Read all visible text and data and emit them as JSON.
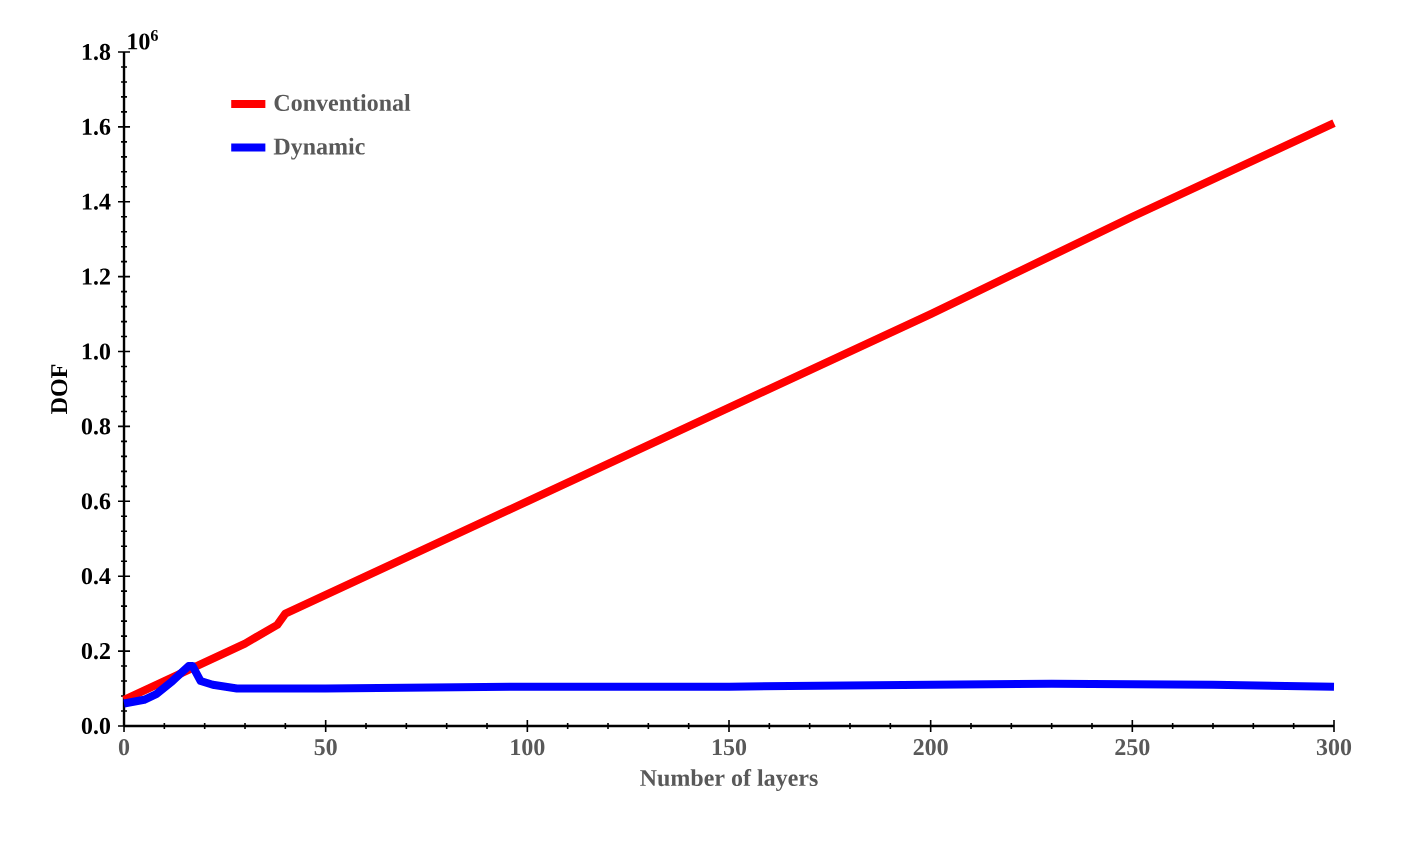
{
  "chart_data": {
    "type": "line",
    "xlabel": "Number of layers",
    "ylabel": "DOF",
    "annotations": [
      "10$^{6}$"
    ],
    "xlim": [
      0,
      300
    ],
    "xticks": [
      0,
      50,
      100,
      150,
      200,
      250,
      300
    ],
    "ylim": [
      0,
      1.8
    ],
    "yticks": [
      {
        "value": 0,
        "label": "0.0"
      },
      0.2,
      0.4,
      0.6,
      0.8,
      {
        "value": 1,
        "label": "1.0"
      },
      1.2,
      1.4,
      1.6,
      1.8
    ],
    "legend": "top left",
    "grid": false,
    "marker": "none",
    "line_style": "solid",
    "series": [
      {
        "name": "Conventional",
        "color": "#ff0000",
        "x": [
          0,
          10,
          20,
          30,
          38,
          40,
          100,
          150,
          200,
          250,
          300
        ],
        "values": [
          0.07,
          0.12,
          0.17,
          0.22,
          0.27,
          0.3,
          0.6,
          0.85,
          1.1,
          1.36,
          1.61
        ]
      },
      {
        "name": "Dynamic",
        "color": "#0000ff",
        "x": [
          0,
          5,
          8,
          12,
          16,
          17,
          19,
          22,
          28,
          50,
          100,
          150,
          200,
          230,
          270,
          300
        ],
        "values": [
          0.06,
          0.07,
          0.085,
          0.12,
          0.16,
          0.16,
          0.12,
          0.11,
          0.1,
          0.1,
          0.105,
          0.105,
          0.11,
          0.113,
          0.11,
          0.105
        ]
      }
    ]
  }
}
